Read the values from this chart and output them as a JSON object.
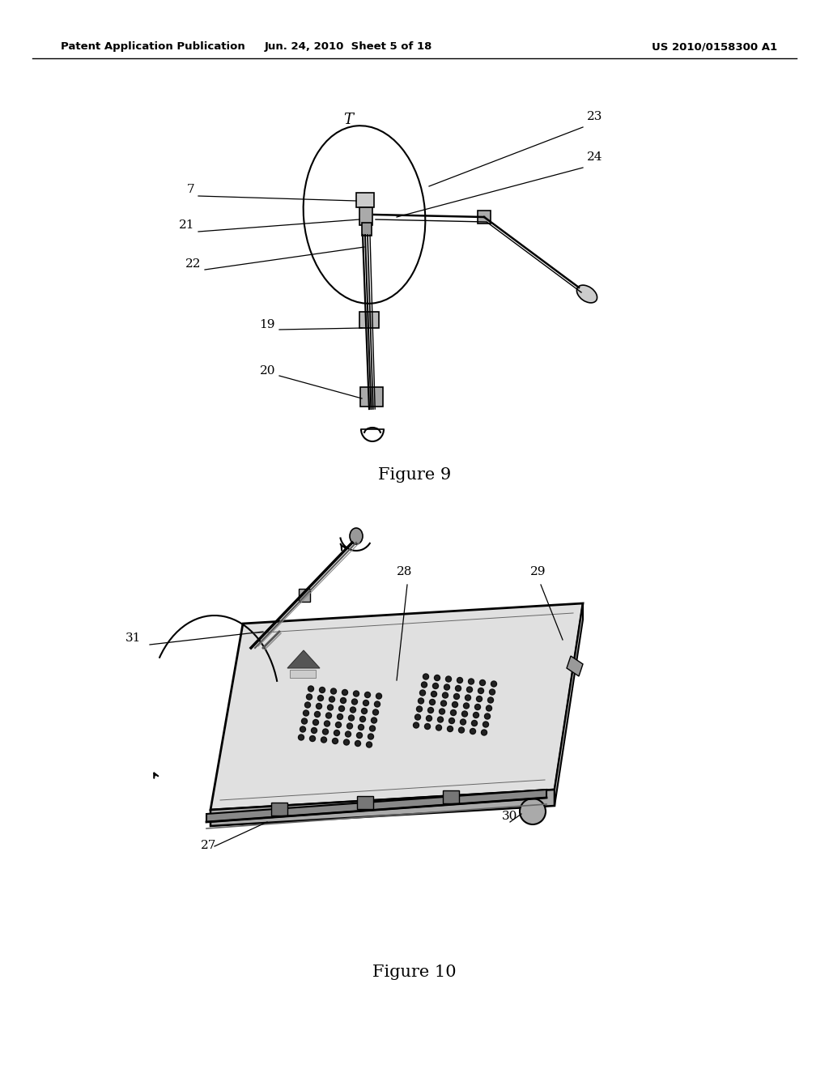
{
  "page_title_left": "Patent Application Publication",
  "page_title_mid": "Jun. 24, 2010  Sheet 5 of 18",
  "page_title_right": "US 2010/0158300 A1",
  "fig9_caption": "Figure 9",
  "fig10_caption": "Figure 10",
  "bg_color": "#ffffff",
  "text_color": "#000000",
  "line_color": "#000000"
}
